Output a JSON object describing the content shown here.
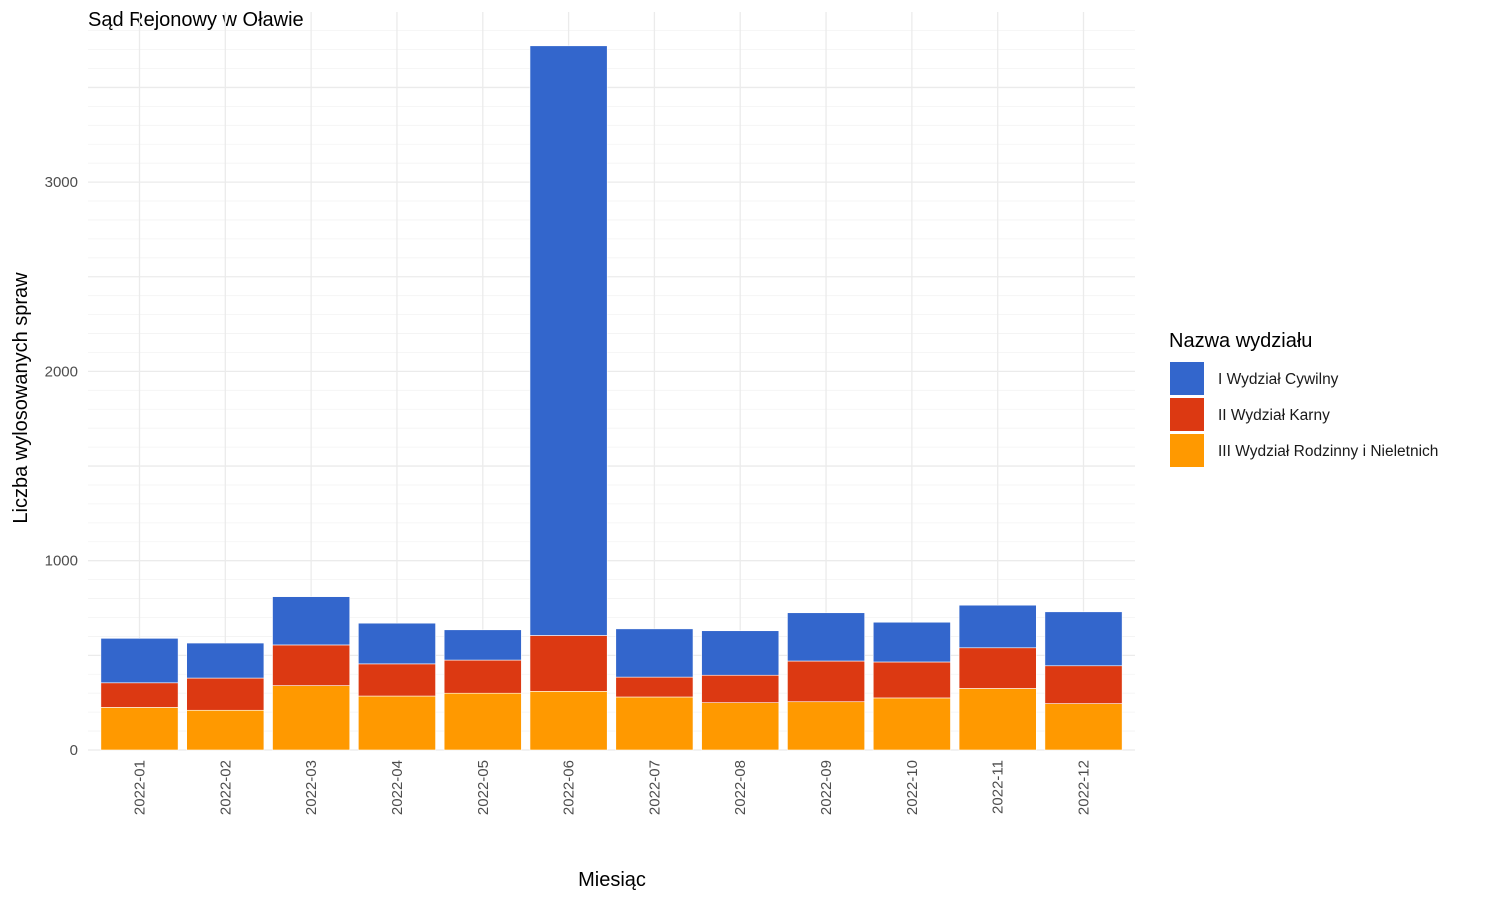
{
  "chart_data": {
    "type": "bar",
    "stacked": true,
    "title": "Sąd Rejonowy w Oławie",
    "xlabel": "Miesiąc",
    "ylabel": "Liczba wylosowanych spraw",
    "categories": [
      "2022-01",
      "2022-02",
      "2022-03",
      "2022-04",
      "2022-05",
      "2022-06",
      "2022-07",
      "2022-08",
      "2022-09",
      "2022-10",
      "2022-11",
      "2022-12"
    ],
    "ylim": [
      0,
      3900
    ],
    "yticks": [
      0,
      1000,
      2000,
      3000
    ],
    "ytick_labels": [
      "0",
      "1000",
      "2000",
      "3000"
    ],
    "grid": true,
    "legend": {
      "title": "Nazwa wydziału",
      "position": "right"
    },
    "series": [
      {
        "name": "III Wydział Rodzinny i Nieletnich",
        "color": "#FF9900",
        "values": [
          225,
          210,
          340,
          285,
          300,
          310,
          280,
          250,
          255,
          275,
          325,
          245
        ]
      },
      {
        "name": "II Wydział Karny",
        "color": "#DC3912",
        "values": [
          130,
          170,
          215,
          170,
          175,
          295,
          105,
          145,
          215,
          190,
          215,
          200
        ]
      },
      {
        "name": "I Wydział Cywilny",
        "color": "#3366CC",
        "values": [
          235,
          185,
          255,
          215,
          160,
          3115,
          255,
          235,
          255,
          210,
          225,
          285
        ]
      }
    ]
  }
}
